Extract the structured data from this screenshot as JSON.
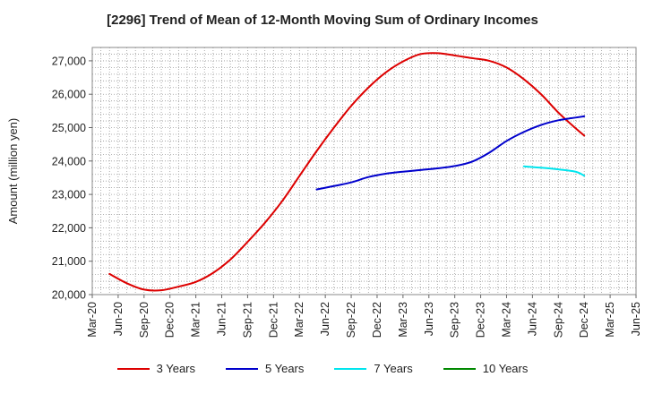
{
  "chart_data": {
    "type": "line",
    "title": "[2296]  Trend of Mean of 12-Month Moving Sum of Ordinary Incomes",
    "xlabel": "",
    "ylabel": "Amount (million yen)",
    "ylim": [
      20000,
      27400
    ],
    "yticks": [
      20000,
      21000,
      22000,
      23000,
      24000,
      25000,
      26000,
      27000
    ],
    "ytick_labels": [
      "20,000",
      "21,000",
      "22,000",
      "23,000",
      "24,000",
      "25,000",
      "26,000",
      "27,000"
    ],
    "xlim": [
      0,
      63
    ],
    "xtick_labels": [
      "Mar-20",
      "Jun-20",
      "Sep-20",
      "Dec-20",
      "Mar-21",
      "Jun-21",
      "Sep-21",
      "Dec-21",
      "Mar-22",
      "Jun-22",
      "Sep-22",
      "Dec-22",
      "Mar-23",
      "Jun-23",
      "Sep-23",
      "Dec-23",
      "Mar-24",
      "Jun-24",
      "Sep-24",
      "Dec-24",
      "Mar-25",
      "Jun-25"
    ],
    "grid": true,
    "series": [
      {
        "name": "3 Years",
        "color": "#dd0000",
        "points": [
          [
            2,
            20620
          ],
          [
            4,
            20340
          ],
          [
            6,
            20150
          ],
          [
            8,
            20130
          ],
          [
            10,
            20240
          ],
          [
            12,
            20380
          ],
          [
            14,
            20650
          ],
          [
            16,
            21050
          ],
          [
            18,
            21580
          ],
          [
            20,
            22150
          ],
          [
            22,
            22800
          ],
          [
            24,
            23550
          ],
          [
            26,
            24300
          ],
          [
            28,
            25000
          ],
          [
            30,
            25650
          ],
          [
            32,
            26200
          ],
          [
            34,
            26650
          ],
          [
            36,
            26980
          ],
          [
            38,
            27200
          ],
          [
            40,
            27230
          ],
          [
            42,
            27160
          ],
          [
            44,
            27080
          ],
          [
            46,
            27000
          ],
          [
            48,
            26800
          ],
          [
            50,
            26450
          ],
          [
            52,
            26000
          ],
          [
            54,
            25450
          ],
          [
            56,
            24980
          ],
          [
            57,
            24760
          ]
        ]
      },
      {
        "name": "5 Years",
        "color": "#0000cc",
        "points": [
          [
            26,
            23150
          ],
          [
            28,
            23250
          ],
          [
            30,
            23360
          ],
          [
            32,
            23520
          ],
          [
            34,
            23620
          ],
          [
            36,
            23680
          ],
          [
            38,
            23730
          ],
          [
            40,
            23780
          ],
          [
            42,
            23850
          ],
          [
            44,
            23980
          ],
          [
            46,
            24250
          ],
          [
            48,
            24600
          ],
          [
            50,
            24870
          ],
          [
            52,
            25080
          ],
          [
            54,
            25220
          ],
          [
            56,
            25300
          ],
          [
            57,
            25340
          ]
        ]
      },
      {
        "name": "7 Years",
        "color": "#00e5ee",
        "points": [
          [
            50,
            23840
          ],
          [
            52,
            23800
          ],
          [
            54,
            23750
          ],
          [
            56,
            23680
          ],
          [
            57,
            23560
          ]
        ]
      },
      {
        "name": "10 Years",
        "color": "#008800",
        "points": []
      }
    ]
  }
}
